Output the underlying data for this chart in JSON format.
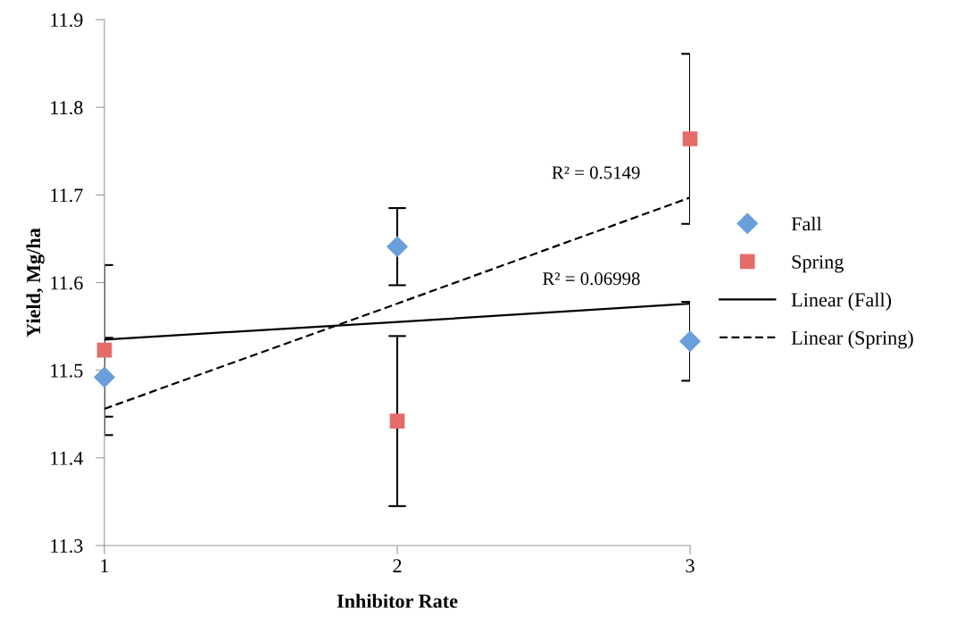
{
  "chart_data": {
    "type": "scatter",
    "xlabel": "Inhibitor Rate",
    "ylabel": "Yield, Mg/ha",
    "x": [
      1,
      2,
      3
    ],
    "series": [
      {
        "name": "Fall",
        "color": "#6a9fdc",
        "marker": "diamond",
        "values": [
          11.492,
          11.641,
          11.533
        ],
        "errors": [
          0.045,
          0.044,
          0.045
        ]
      },
      {
        "name": "Spring",
        "color": "#e46c68",
        "marker": "square",
        "values": [
          11.523,
          11.442,
          11.764
        ],
        "errors": [
          0.097,
          0.097,
          0.097
        ]
      },
      {
        "name": "Linear (Fall)",
        "type": "line",
        "color": "#000000",
        "line_style": "solid",
        "values": [
          11.535,
          11.555,
          11.576
        ]
      },
      {
        "name": "Linear (Spring)",
        "type": "line",
        "color": "#000000",
        "line_style": "dashed",
        "values": [
          11.456,
          11.576,
          11.697
        ]
      }
    ],
    "annotations": [
      {
        "text": "R² = 0.5149",
        "x": 3,
        "y": 11.697
      },
      {
        "text": "R² = 0.06998",
        "x": 3,
        "y": 11.576
      }
    ],
    "xlim": [
      1,
      3
    ],
    "xticks": [
      1,
      2,
      3
    ],
    "ylim": [
      11.3,
      11.9
    ],
    "yticks": [
      11.3,
      11.4,
      11.5,
      11.6,
      11.7,
      11.8,
      11.9
    ],
    "grid": false,
    "legend": "right"
  }
}
